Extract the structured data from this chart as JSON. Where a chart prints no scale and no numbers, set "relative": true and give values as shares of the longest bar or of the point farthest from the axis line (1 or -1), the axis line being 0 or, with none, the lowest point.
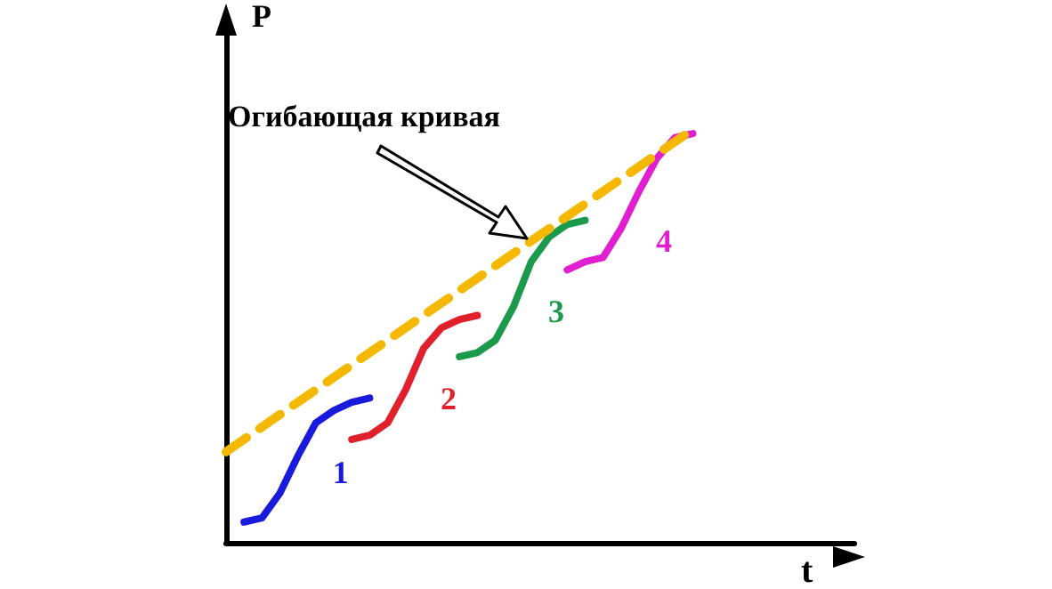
{
  "chart_data": {
    "type": "line",
    "relative": true,
    "xlabel": "t",
    "ylabel": "P",
    "marker": "none",
    "line_style": "solid",
    "annotations": [
      "Огибающая кривая"
    ],
    "categories": [
      null,
      null,
      null,
      null,
      null,
      null,
      null,
      null,
      null,
      null,
      null,
      null,
      null,
      null,
      null,
      null,
      null,
      null,
      null,
      null,
      null,
      null,
      null,
      null,
      null,
      null,
      null,
      null,
      null,
      null,
      null,
      null,
      null,
      null,
      null,
      null
    ],
    "series": [
      {
        "color": "#f5b800",
        "line_style": "dashed",
        "values": [
          0.22,
          null,
          null,
          null,
          null,
          null,
          null,
          null,
          null,
          null,
          null,
          null,
          null,
          null,
          null,
          null,
          null,
          null,
          null,
          null,
          null,
          null,
          null,
          null,
          null,
          null,
          1.0,
          null,
          null,
          null,
          null,
          null,
          null,
          null,
          null,
          null
        ]
      },
      {
        "name": "1",
        "color": "#1a1adc",
        "values": [
          null,
          0.05,
          0.06,
          0.12,
          0.21,
          0.29,
          0.32,
          0.34,
          0.35,
          null,
          null,
          null,
          null,
          null,
          null,
          null,
          null,
          null,
          null,
          null,
          null,
          null,
          null,
          null,
          null,
          null,
          null,
          null,
          null,
          null,
          null,
          null,
          null,
          null,
          null,
          null
        ]
      },
      {
        "name": "2",
        "color": "#e0202a",
        "values": [
          null,
          null,
          null,
          null,
          null,
          null,
          null,
          0.25,
          0.26,
          0.29,
          0.37,
          0.47,
          0.52,
          0.54,
          0.55,
          null,
          null,
          null,
          null,
          null,
          null,
          null,
          null,
          null,
          null,
          null,
          null,
          null,
          null,
          null,
          null,
          null,
          null,
          null,
          null,
          null
        ]
      },
      {
        "name": "3",
        "color": "#1a9a4a",
        "values": [
          null,
          null,
          null,
          null,
          null,
          null,
          null,
          null,
          null,
          null,
          null,
          null,
          null,
          0.45,
          0.46,
          0.49,
          0.57,
          0.68,
          0.74,
          0.77,
          0.78,
          null,
          null,
          null,
          null,
          null,
          null,
          null,
          null,
          null,
          null,
          null,
          null,
          null,
          null,
          null
        ]
      },
      {
        "name": "4",
        "color": "#e020d0",
        "values": [
          null,
          null,
          null,
          null,
          null,
          null,
          null,
          null,
          null,
          null,
          null,
          null,
          null,
          null,
          null,
          null,
          null,
          null,
          null,
          0.66,
          0.68,
          0.69,
          0.76,
          0.85,
          0.93,
          0.98,
          0.99,
          null,
          null,
          null,
          null,
          null,
          null,
          null,
          null,
          null
        ]
      }
    ]
  }
}
